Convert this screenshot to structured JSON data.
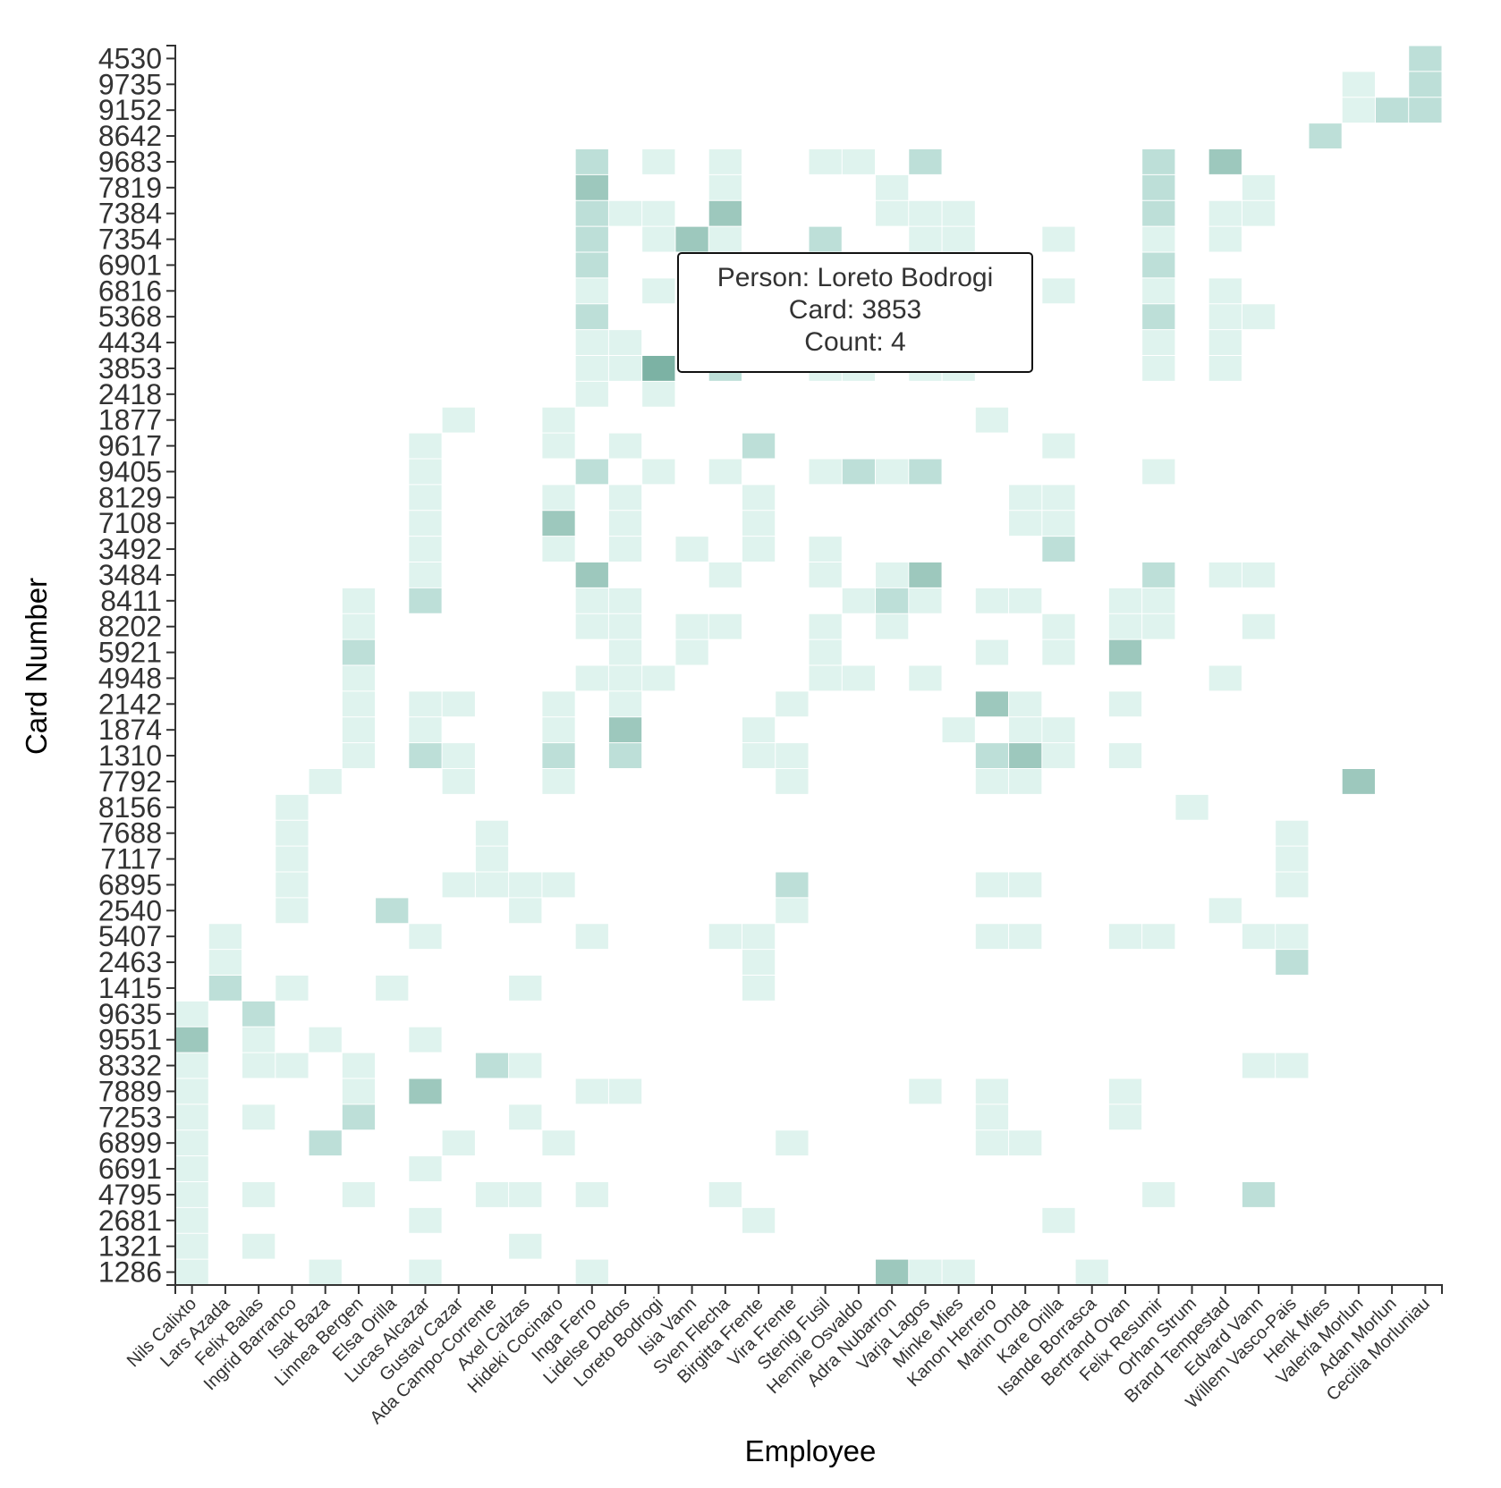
{
  "chart_data": {
    "type": "heatmap",
    "title": "",
    "xlabel": "Employee",
    "ylabel": "Card Number",
    "employees": [
      "Nils Calixto",
      "Lars Azada",
      "Felix Balas",
      "Ingrid Barranco",
      "Isak Baza",
      "Linnea Bergen",
      "Elsa Orilla",
      "Lucas Alcazar",
      "Gustav Cazar",
      "Ada Campo-Corrente",
      "Axel Calzas",
      "Hideki Cocinaro",
      "Inga Ferro",
      "Lidelse Dedos",
      "Loreto Bodrogi",
      "Isia Vann",
      "Sven Flecha",
      "Birgitta Frente",
      "Vira Frente",
      "Stenig Fusil",
      "Hennie Osvaldo",
      "Adra Nubarron",
      "Varja Lagos",
      "Minke Mies",
      "Kanon Herrero",
      "Marin Onda",
      "Kare Orilla",
      "Isande Borrasca",
      "Bertrand Ovan",
      "Felix Resumir",
      "Orhan Strum",
      "Brand Tempestad",
      "Edvard Vann",
      "Willem Vasco-Pais",
      "Henk Mies",
      "Valeria Morlun",
      "Adan Morlun",
      "Cecilia Morluniau"
    ],
    "color_scale": {
      "1": "#dff3ee",
      "2": "#bddfd8",
      "3": "#9dc8bd",
      "4": "#7cb2a4"
    },
    "rows": [
      {
        "card": "4530",
        "counts": {
          "Cecilia Morluniau": 2
        }
      },
      {
        "card": "9735",
        "counts": {
          "Valeria Morlun": 1,
          "Cecilia Morluniau": 2
        }
      },
      {
        "card": "9152",
        "counts": {
          "Valeria Morlun": 1,
          "Adan Morlun": 2,
          "Cecilia Morluniau": 2
        }
      },
      {
        "card": "8642",
        "counts": {
          "Henk Mies": 2
        }
      },
      {
        "card": "9683",
        "counts": {
          "Inga Ferro": 2,
          "Loreto Bodrogi": 1,
          "Sven Flecha": 1,
          "Stenig Fusil": 1,
          "Hennie Osvaldo": 1,
          "Varja Lagos": 2,
          "Felix Resumir": 2,
          "Brand Tempestad": 3
        }
      },
      {
        "card": "7819",
        "counts": {
          "Inga Ferro": 3,
          "Sven Flecha": 1,
          "Adra Nubarron": 1,
          "Felix Resumir": 2,
          "Edvard Vann": 1
        }
      },
      {
        "card": "7384",
        "counts": {
          "Inga Ferro": 2,
          "Lidelse Dedos": 1,
          "Loreto Bodrogi": 1,
          "Sven Flecha": 3,
          "Adra Nubarron": 1,
          "Varja Lagos": 1,
          "Minke Mies": 1,
          "Felix Resumir": 2,
          "Brand Tempestad": 1,
          "Edvard Vann": 1
        }
      },
      {
        "card": "7354",
        "counts": {
          "Inga Ferro": 2,
          "Loreto Bodrogi": 1,
          "Isia Vann": 3,
          "Sven Flecha": 1,
          "Stenig Fusil": 2,
          "Varja Lagos": 1,
          "Minke Mies": 1,
          "Kare Orilla": 1,
          "Felix Resumir": 1,
          "Brand Tempestad": 1
        }
      },
      {
        "card": "6901",
        "counts": {
          "Inga Ferro": 2,
          "Felix Resumir": 2
        }
      },
      {
        "card": "6816",
        "counts": {
          "Inga Ferro": 1,
          "Loreto Bodrogi": 1,
          "Kare Orilla": 1,
          "Felix Resumir": 1,
          "Brand Tempestad": 1
        }
      },
      {
        "card": "5368",
        "counts": {
          "Inga Ferro": 2,
          "Felix Resumir": 2,
          "Brand Tempestad": 1,
          "Edvard Vann": 1
        }
      },
      {
        "card": "4434",
        "counts": {
          "Inga Ferro": 1,
          "Lidelse Dedos": 1,
          "Felix Resumir": 1,
          "Brand Tempestad": 1
        }
      },
      {
        "card": "3853",
        "counts": {
          "Inga Ferro": 1,
          "Lidelse Dedos": 1,
          "Loreto Bodrogi": 4,
          "Sven Flecha": 2,
          "Stenig Fusil": 1,
          "Hennie Osvaldo": 1,
          "Varja Lagos": 1,
          "Minke Mies": 1,
          "Felix Resumir": 1,
          "Brand Tempestad": 1
        }
      },
      {
        "card": "2418",
        "counts": {
          "Inga Ferro": 1,
          "Loreto Bodrogi": 1
        }
      },
      {
        "card": "1877",
        "counts": {
          "Gustav Cazar": 1,
          "Hideki Cocinaro": 1,
          "Kanon Herrero": 1
        }
      },
      {
        "card": "9617",
        "counts": {
          "Lucas Alcazar": 1,
          "Hideki Cocinaro": 1,
          "Lidelse Dedos": 1,
          "Birgitta Frente": 2,
          "Kare Orilla": 1
        }
      },
      {
        "card": "9405",
        "counts": {
          "Lucas Alcazar": 1,
          "Inga Ferro": 2,
          "Loreto Bodrogi": 1,
          "Sven Flecha": 1,
          "Stenig Fusil": 1,
          "Hennie Osvaldo": 2,
          "Adra Nubarron": 1,
          "Varja Lagos": 2,
          "Felix Resumir": 1
        }
      },
      {
        "card": "8129",
        "counts": {
          "Lucas Alcazar": 1,
          "Hideki Cocinaro": 1,
          "Lidelse Dedos": 1,
          "Birgitta Frente": 1,
          "Marin Onda": 1,
          "Kare Orilla": 1
        }
      },
      {
        "card": "7108",
        "counts": {
          "Lucas Alcazar": 1,
          "Hideki Cocinaro": 3,
          "Lidelse Dedos": 1,
          "Birgitta Frente": 1,
          "Marin Onda": 1,
          "Kare Orilla": 1
        }
      },
      {
        "card": "3492",
        "counts": {
          "Lucas Alcazar": 1,
          "Hideki Cocinaro": 1,
          "Lidelse Dedos": 1,
          "Isia Vann": 1,
          "Birgitta Frente": 1,
          "Stenig Fusil": 1,
          "Kare Orilla": 2
        }
      },
      {
        "card": "3484",
        "counts": {
          "Lucas Alcazar": 1,
          "Inga Ferro": 3,
          "Sven Flecha": 1,
          "Stenig Fusil": 1,
          "Adra Nubarron": 1,
          "Varja Lagos": 3,
          "Felix Resumir": 2,
          "Brand Tempestad": 1,
          "Edvard Vann": 1
        }
      },
      {
        "card": "8411",
        "counts": {
          "Linnea Bergen": 1,
          "Lucas Alcazar": 2,
          "Inga Ferro": 1,
          "Lidelse Dedos": 1,
          "Hennie Osvaldo": 1,
          "Adra Nubarron": 2,
          "Varja Lagos": 1,
          "Kanon Herrero": 1,
          "Marin Onda": 1,
          "Bertrand Ovan": 1,
          "Felix Resumir": 1
        }
      },
      {
        "card": "8202",
        "counts": {
          "Linnea Bergen": 1,
          "Inga Ferro": 1,
          "Lidelse Dedos": 1,
          "Isia Vann": 1,
          "Sven Flecha": 1,
          "Stenig Fusil": 1,
          "Adra Nubarron": 1,
          "Kare Orilla": 1,
          "Bertrand Ovan": 1,
          "Felix Resumir": 1,
          "Edvard Vann": 1
        }
      },
      {
        "card": "5921",
        "counts": {
          "Linnea Bergen": 2,
          "Lidelse Dedos": 1,
          "Isia Vann": 1,
          "Stenig Fusil": 1,
          "Kanon Herrero": 1,
          "Kare Orilla": 1,
          "Bertrand Ovan": 3
        }
      },
      {
        "card": "4948",
        "counts": {
          "Linnea Bergen": 1,
          "Inga Ferro": 1,
          "Lidelse Dedos": 1,
          "Loreto Bodrogi": 1,
          "Stenig Fusil": 1,
          "Hennie Osvaldo": 1,
          "Varja Lagos": 1,
          "Brand Tempestad": 1
        }
      },
      {
        "card": "2142",
        "counts": {
          "Linnea Bergen": 1,
          "Lucas Alcazar": 1,
          "Gustav Cazar": 1,
          "Hideki Cocinaro": 1,
          "Lidelse Dedos": 1,
          "Vira Frente": 1,
          "Kanon Herrero": 3,
          "Marin Onda": 1,
          "Bertrand Ovan": 1
        }
      },
      {
        "card": "1874",
        "counts": {
          "Linnea Bergen": 1,
          "Lucas Alcazar": 1,
          "Hideki Cocinaro": 1,
          "Lidelse Dedos": 3,
          "Birgitta Frente": 1,
          "Minke Mies": 1,
          "Marin Onda": 1,
          "Kare Orilla": 1
        }
      },
      {
        "card": "1310",
        "counts": {
          "Linnea Bergen": 1,
          "Lucas Alcazar": 2,
          "Gustav Cazar": 1,
          "Hideki Cocinaro": 2,
          "Lidelse Dedos": 2,
          "Birgitta Frente": 1,
          "Vira Frente": 1,
          "Kanon Herrero": 2,
          "Marin Onda": 3,
          "Kare Orilla": 1,
          "Bertrand Ovan": 1
        }
      },
      {
        "card": "7792",
        "counts": {
          "Isak Baza": 1,
          "Gustav Cazar": 1,
          "Hideki Cocinaro": 1,
          "Vira Frente": 1,
          "Kanon Herrero": 1,
          "Marin Onda": 1,
          "Valeria Morlun": 3
        }
      },
      {
        "card": "8156",
        "counts": {
          "Ingrid Barranco": 1,
          "Orhan Strum": 1
        }
      },
      {
        "card": "7688",
        "counts": {
          "Ingrid Barranco": 1,
          "Ada Campo-Corrente": 1,
          "Willem Vasco-Pais": 1
        }
      },
      {
        "card": "7117",
        "counts": {
          "Ingrid Barranco": 1,
          "Ada Campo-Corrente": 1,
          "Willem Vasco-Pais": 1
        }
      },
      {
        "card": "6895",
        "counts": {
          "Ingrid Barranco": 1,
          "Gustav Cazar": 1,
          "Ada Campo-Corrente": 1,
          "Axel Calzas": 1,
          "Hideki Cocinaro": 1,
          "Vira Frente": 2,
          "Kanon Herrero": 1,
          "Marin Onda": 1,
          "Willem Vasco-Pais": 1
        }
      },
      {
        "card": "2540",
        "counts": {
          "Ingrid Barranco": 1,
          "Elsa Orilla": 2,
          "Axel Calzas": 1,
          "Vira Frente": 1,
          "Brand Tempestad": 1
        }
      },
      {
        "card": "5407",
        "counts": {
          "Lars Azada": 1,
          "Lucas Alcazar": 1,
          "Inga Ferro": 1,
          "Sven Flecha": 1,
          "Birgitta Frente": 1,
          "Kanon Herrero": 1,
          "Marin Onda": 1,
          "Bertrand Ovan": 1,
          "Felix Resumir": 1,
          "Edvard Vann": 1,
          "Willem Vasco-Pais": 1
        }
      },
      {
        "card": "2463",
        "counts": {
          "Lars Azada": 1,
          "Birgitta Frente": 1,
          "Willem Vasco-Pais": 2
        }
      },
      {
        "card": "1415",
        "counts": {
          "Lars Azada": 2,
          "Ingrid Barranco": 1,
          "Elsa Orilla": 1,
          "Axel Calzas": 1,
          "Birgitta Frente": 1
        }
      },
      {
        "card": "9635",
        "counts": {
          "Nils Calixto": 1,
          "Felix Balas": 2
        }
      },
      {
        "card": "9551",
        "counts": {
          "Nils Calixto": 3,
          "Felix Balas": 1,
          "Isak Baza": 1,
          "Lucas Alcazar": 1
        }
      },
      {
        "card": "8332",
        "counts": {
          "Nils Calixto": 1,
          "Felix Balas": 1,
          "Ingrid Barranco": 1,
          "Linnea Bergen": 1,
          "Ada Campo-Corrente": 2,
          "Axel Calzas": 1,
          "Edvard Vann": 1,
          "Willem Vasco-Pais": 1
        }
      },
      {
        "card": "7889",
        "counts": {
          "Nils Calixto": 1,
          "Linnea Bergen": 1,
          "Lucas Alcazar": 3,
          "Inga Ferro": 1,
          "Lidelse Dedos": 1,
          "Varja Lagos": 1,
          "Kanon Herrero": 1,
          "Bertrand Ovan": 1
        }
      },
      {
        "card": "7253",
        "counts": {
          "Nils Calixto": 1,
          "Felix Balas": 1,
          "Linnea Bergen": 2,
          "Axel Calzas": 1,
          "Kanon Herrero": 1,
          "Bertrand Ovan": 1
        }
      },
      {
        "card": "6899",
        "counts": {
          "Nils Calixto": 1,
          "Isak Baza": 2,
          "Gustav Cazar": 1,
          "Hideki Cocinaro": 1,
          "Vira Frente": 1,
          "Kanon Herrero": 1,
          "Marin Onda": 1
        }
      },
      {
        "card": "6691",
        "counts": {
          "Nils Calixto": 1,
          "Lucas Alcazar": 1
        }
      },
      {
        "card": "4795",
        "counts": {
          "Nils Calixto": 1,
          "Felix Balas": 1,
          "Linnea Bergen": 1,
          "Ada Campo-Corrente": 1,
          "Axel Calzas": 1,
          "Inga Ferro": 1,
          "Sven Flecha": 1,
          "Felix Resumir": 1,
          "Edvard Vann": 2
        }
      },
      {
        "card": "2681",
        "counts": {
          "Nils Calixto": 1,
          "Lucas Alcazar": 1,
          "Birgitta Frente": 1,
          "Kare Orilla": 1
        }
      },
      {
        "card": "1321",
        "counts": {
          "Nils Calixto": 1,
          "Felix Balas": 1,
          "Axel Calzas": 1
        }
      },
      {
        "card": "1286",
        "counts": {
          "Nils Calixto": 1,
          "Isak Baza": 1,
          "Lucas Alcazar": 1,
          "Inga Ferro": 1,
          "Adra Nubarron": 3,
          "Varja Lagos": 1,
          "Minke Mies": 1,
          "Isande Borrasca": 1
        }
      }
    ],
    "grid": false,
    "legend": "none"
  },
  "tooltip": {
    "person_line": "Person: Loreto Bodrogi",
    "card_line": "Card: 3853",
    "count_line": "Count: 4"
  }
}
